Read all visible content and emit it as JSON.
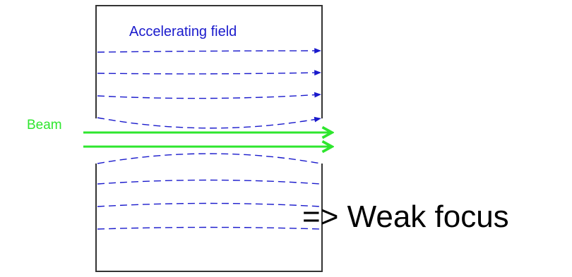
{
  "diagram": {
    "field_label": "Accelerating field",
    "beam_label": "Beam",
    "conclusion": "=> Weak focus",
    "colors": {
      "field": "#1a1acc",
      "beam": "#2ee62e",
      "electrode": "#333333",
      "text": "#000000"
    }
  }
}
